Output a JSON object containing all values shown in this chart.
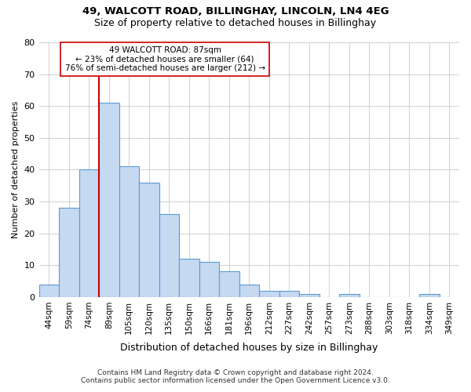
{
  "title1": "49, WALCOTT ROAD, BILLINGHAY, LINCOLN, LN4 4EG",
  "title2": "Size of property relative to detached houses in Billinghay",
  "xlabel": "Distribution of detached houses by size in Billinghay",
  "ylabel": "Number of detached properties",
  "categories": [
    "44sqm",
    "59sqm",
    "74sqm",
    "89sqm",
    "105sqm",
    "120sqm",
    "135sqm",
    "150sqm",
    "166sqm",
    "181sqm",
    "196sqm",
    "212sqm",
    "227sqm",
    "242sqm",
    "257sqm",
    "273sqm",
    "288sqm",
    "303sqm",
    "318sqm",
    "334sqm",
    "349sqm"
  ],
  "values": [
    4,
    28,
    40,
    61,
    41,
    36,
    26,
    12,
    11,
    8,
    4,
    2,
    2,
    1,
    0,
    1,
    0,
    0,
    0,
    1,
    0
  ],
  "bar_color": "#c5d9f1",
  "bar_edge_color": "#5b9bd5",
  "vline_x": 3.0,
  "vline_color": "#cc0000",
  "annotation_text": "49 WALCOTT ROAD: 87sqm\n← 23% of detached houses are smaller (64)\n76% of semi-detached houses are larger (212) →",
  "annotation_box_color": "white",
  "annotation_box_edge_color": "#cc0000",
  "ylim": [
    0,
    80
  ],
  "yticks": [
    0,
    10,
    20,
    30,
    40,
    50,
    60,
    70,
    80
  ],
  "footnote": "Contains HM Land Registry data © Crown copyright and database right 2024.\nContains public sector information licensed under the Open Government Licence v3.0.",
  "bg_color": "#ffffff",
  "grid_color": "#d0d0d0"
}
